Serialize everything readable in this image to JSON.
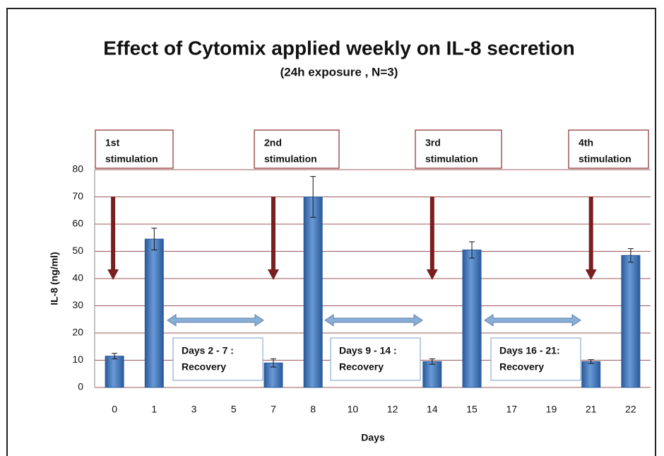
{
  "chart_data": {
    "type": "bar",
    "title": "Effect of Cytomix applied weekly on IL-8 secretion",
    "subtitle": "(24h exposure , N=3)",
    "x_label": "Days",
    "y_label": "IL-8 (ng/ml)",
    "categories": [
      "0",
      "1",
      "3",
      "5",
      "7",
      "8",
      "10",
      "12",
      "14",
      "15",
      "17",
      "19",
      "21",
      "22"
    ],
    "values": [
      11.5,
      54.5,
      null,
      null,
      9,
      70,
      null,
      null,
      9.5,
      50.5,
      null,
      null,
      9.5,
      48.5
    ],
    "errors": [
      1,
      4,
      null,
      null,
      1.5,
      7.5,
      null,
      null,
      1,
      3,
      null,
      null,
      0.7,
      2.5
    ],
    "color": "#4a7ec0",
    "ylim": [
      0,
      80
    ],
    "yticks": [
      0,
      10,
      20,
      30,
      40,
      50,
      60,
      70,
      80
    ],
    "grid": true,
    "stimulation_labels": [
      [
        "1st",
        "stimulation"
      ],
      [
        "2nd",
        "stimulation"
      ],
      [
        "3rd",
        "stimulation"
      ],
      [
        "4th",
        "stimulation"
      ]
    ],
    "recovery_labels": [
      [
        "Days 2 - 7 :",
        "Recovery"
      ],
      [
        "Days 9 - 14 :",
        "Recovery"
      ],
      [
        "Days 16 - 21:",
        "Recovery"
      ]
    ]
  }
}
